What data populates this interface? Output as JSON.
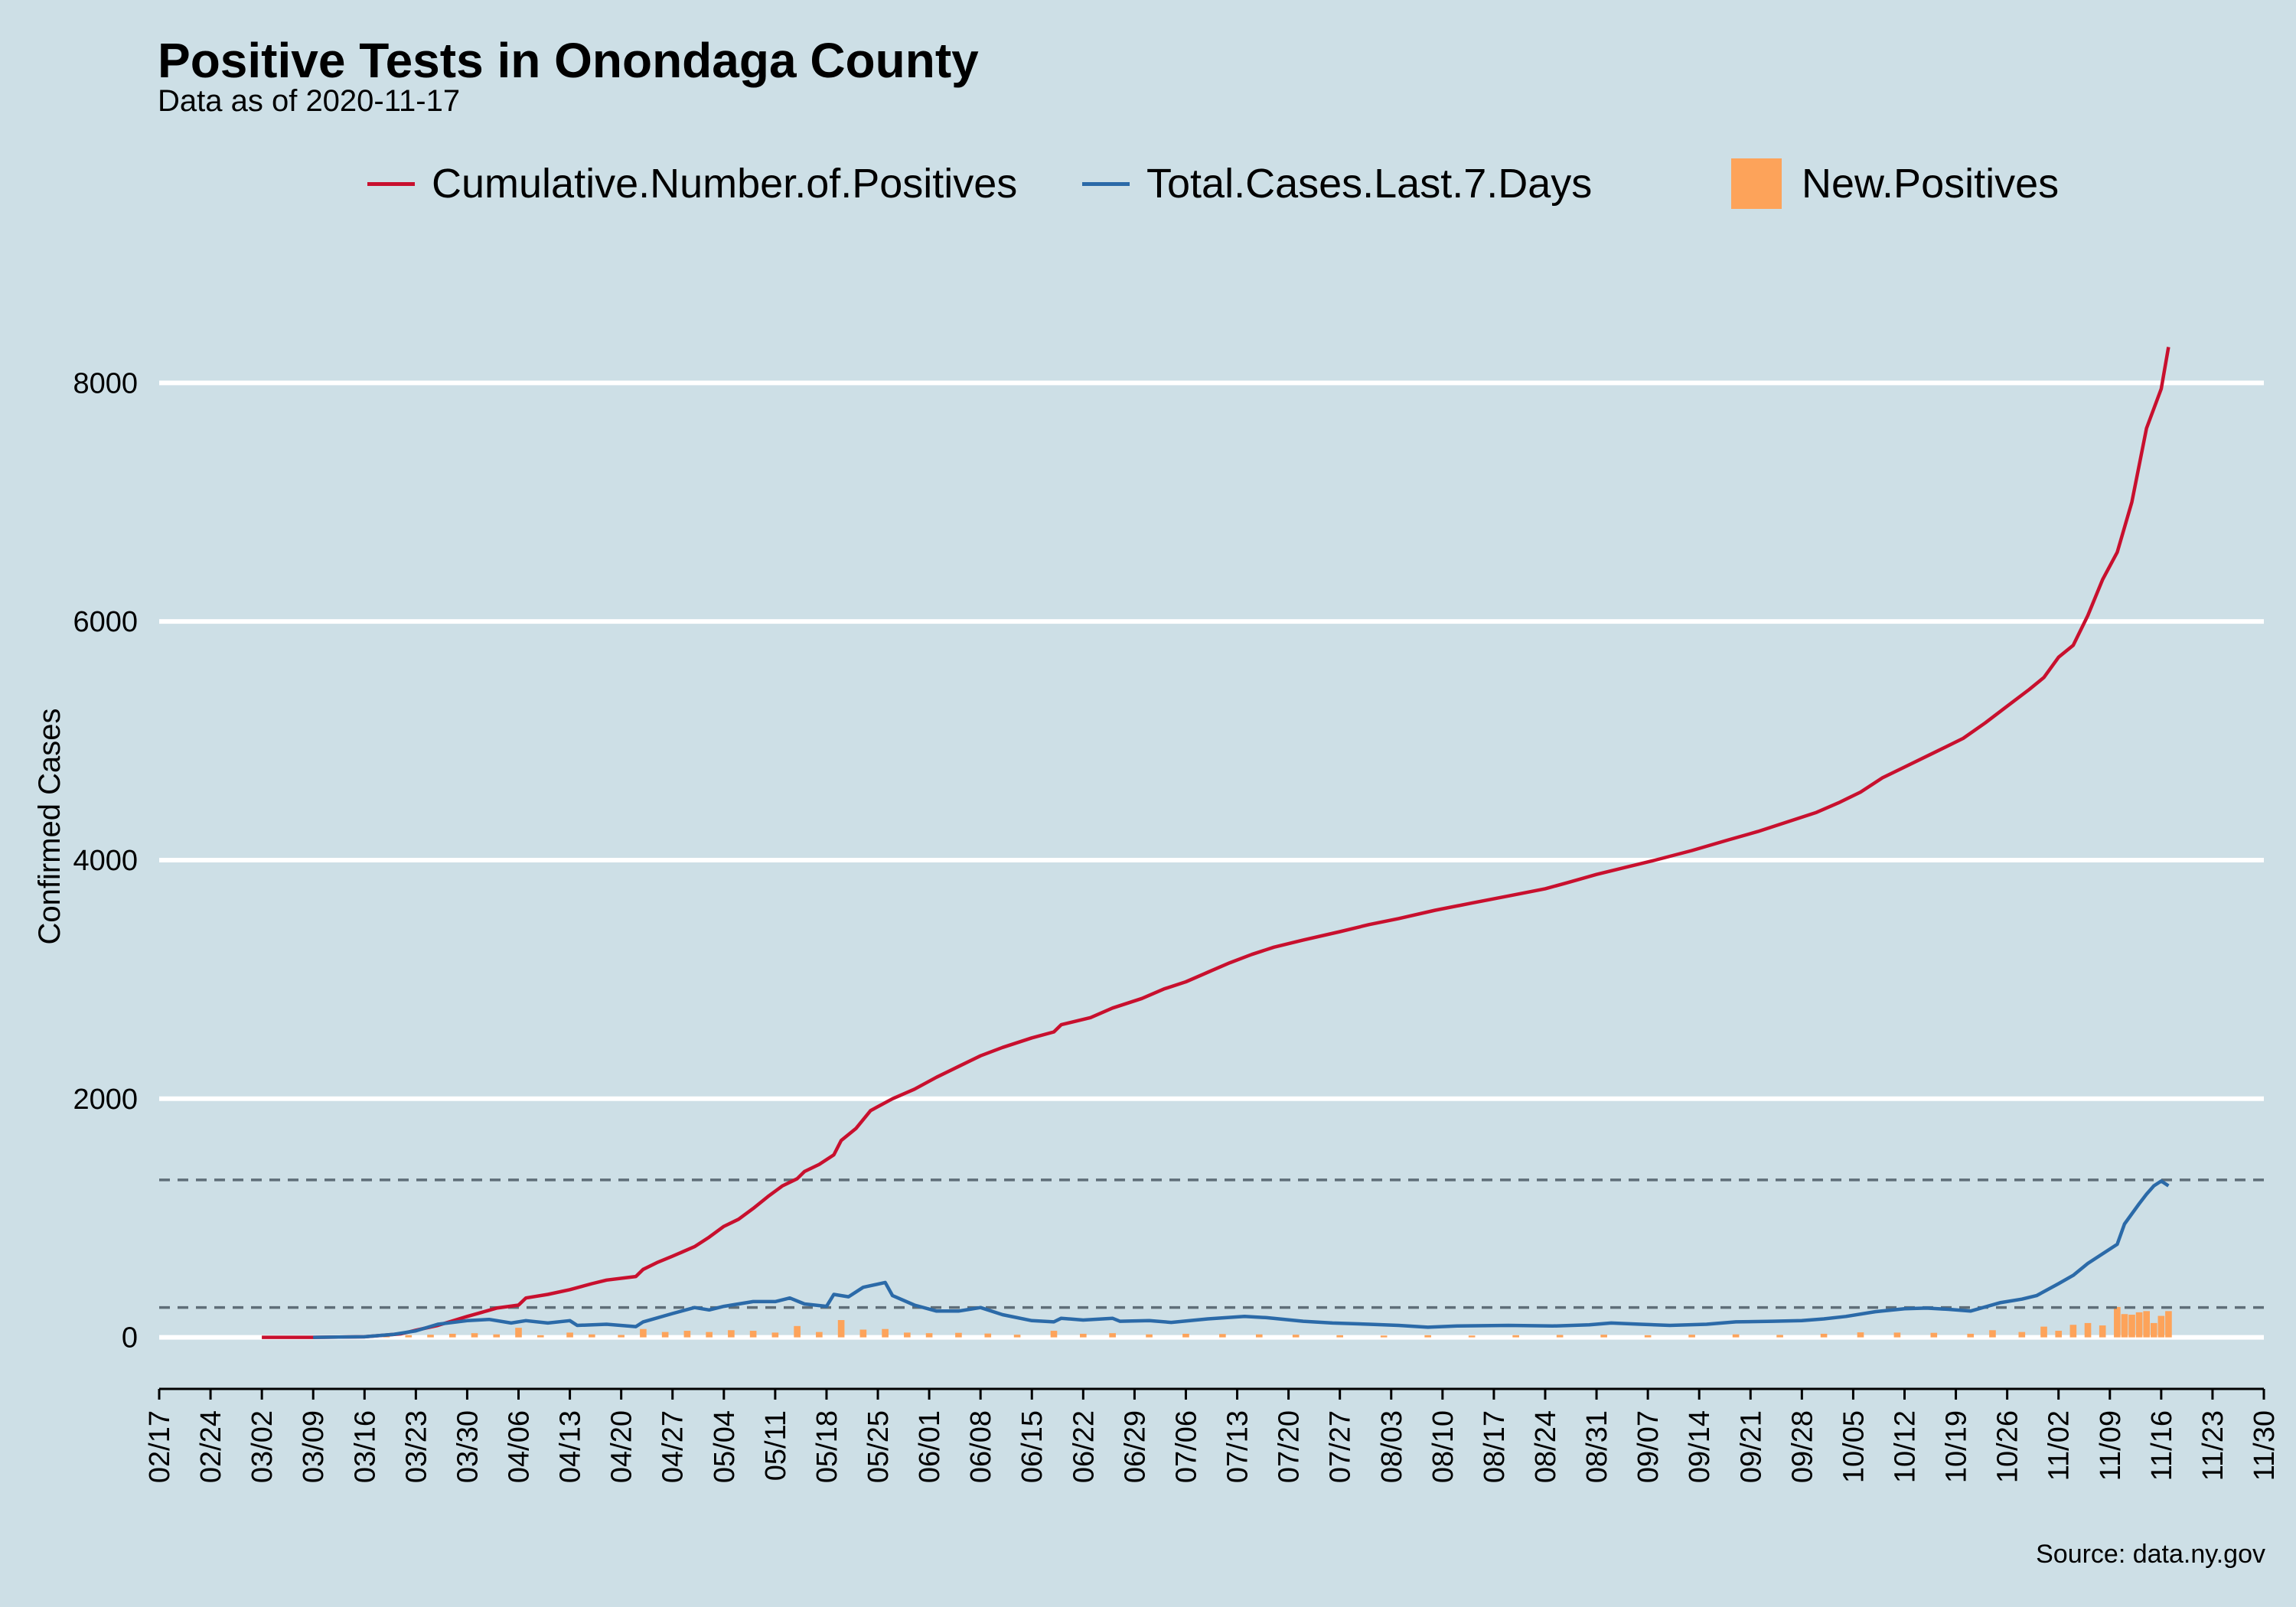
{
  "chart_data": {
    "type": "line",
    "title": "Positive Tests in Onondaga County",
    "subtitle": "Data as of 2020-11-17",
    "ylabel": "Confirmed Cases",
    "xlabel": "",
    "source": "Source: data.ny.gov",
    "x_ticks": [
      "02/17",
      "02/24",
      "03/02",
      "03/09",
      "03/16",
      "03/23",
      "03/30",
      "04/06",
      "04/13",
      "04/20",
      "04/27",
      "05/04",
      "05/11",
      "05/18",
      "05/25",
      "06/01",
      "06/08",
      "06/15",
      "06/22",
      "06/29",
      "07/06",
      "07/13",
      "07/20",
      "07/27",
      "08/03",
      "08/10",
      "08/17",
      "08/24",
      "08/31",
      "09/07",
      "09/14",
      "09/21",
      "09/28",
      "10/05",
      "10/12",
      "10/19",
      "10/26",
      "11/02",
      "11/09",
      "11/16",
      "11/23",
      "11/30"
    ],
    "y_ticks": [
      0,
      2000,
      4000,
      6000,
      8000
    ],
    "xlim": [
      "2020-02-17",
      "2020-11-30"
    ],
    "ylim": [
      -400,
      8900
    ],
    "grid": "horizontal",
    "legend_position": "top",
    "reference_lines": [
      250,
      1320
    ],
    "colors": {
      "background": "#cddfe6",
      "cumulative": "#c8102e",
      "weekly": "#2b6aa8",
      "new": "#fda35a",
      "grid": "#ffffff",
      "reference": "#5f6e78"
    },
    "series": [
      {
        "name": "Cumulative.Number.of.Positives",
        "kind": "line",
        "points": [
          [
            "2020-03-02",
            0
          ],
          [
            "2020-03-09",
            0
          ],
          [
            "2020-03-16",
            5
          ],
          [
            "2020-03-21",
            30
          ],
          [
            "2020-03-23",
            60
          ],
          [
            "2020-03-26",
            100
          ],
          [
            "2020-03-30",
            175
          ],
          [
            "2020-04-01",
            210
          ],
          [
            "2020-04-03",
            245
          ],
          [
            "2020-04-06",
            270
          ],
          [
            "2020-04-07",
            330
          ],
          [
            "2020-04-10",
            360
          ],
          [
            "2020-04-13",
            400
          ],
          [
            "2020-04-16",
            450
          ],
          [
            "2020-04-18",
            480
          ],
          [
            "2020-04-22",
            510
          ],
          [
            "2020-04-23",
            570
          ],
          [
            "2020-04-25",
            630
          ],
          [
            "2020-04-27",
            680
          ],
          [
            "2020-04-30",
            760
          ],
          [
            "2020-05-02",
            840
          ],
          [
            "2020-05-04",
            930
          ],
          [
            "2020-05-06",
            990
          ],
          [
            "2020-05-08",
            1080
          ],
          [
            "2020-05-10",
            1180
          ],
          [
            "2020-05-12",
            1270
          ],
          [
            "2020-05-14",
            1330
          ],
          [
            "2020-05-15",
            1390
          ],
          [
            "2020-05-17",
            1450
          ],
          [
            "2020-05-19",
            1530
          ],
          [
            "2020-05-20",
            1650
          ],
          [
            "2020-05-22",
            1750
          ],
          [
            "2020-05-24",
            1900
          ],
          [
            "2020-05-27",
            2000
          ],
          [
            "2020-05-30",
            2080
          ],
          [
            "2020-06-02",
            2180
          ],
          [
            "2020-06-05",
            2270
          ],
          [
            "2020-06-08",
            2360
          ],
          [
            "2020-06-11",
            2430
          ],
          [
            "2020-06-15",
            2510
          ],
          [
            "2020-06-18",
            2560
          ],
          [
            "2020-06-19",
            2620
          ],
          [
            "2020-06-23",
            2680
          ],
          [
            "2020-06-26",
            2760
          ],
          [
            "2020-06-30",
            2840
          ],
          [
            "2020-07-03",
            2920
          ],
          [
            "2020-07-06",
            2980
          ],
          [
            "2020-07-09",
            3060
          ],
          [
            "2020-07-12",
            3140
          ],
          [
            "2020-07-15",
            3210
          ],
          [
            "2020-07-18",
            3270
          ],
          [
            "2020-07-22",
            3330
          ],
          [
            "2020-07-27",
            3400
          ],
          [
            "2020-07-31",
            3460
          ],
          [
            "2020-08-04",
            3510
          ],
          [
            "2020-08-09",
            3580
          ],
          [
            "2020-08-14",
            3640
          ],
          [
            "2020-08-19",
            3700
          ],
          [
            "2020-08-24",
            3760
          ],
          [
            "2020-08-27",
            3810
          ],
          [
            "2020-08-31",
            3880
          ],
          [
            "2020-09-04",
            3940
          ],
          [
            "2020-09-08",
            4000
          ],
          [
            "2020-09-13",
            4080
          ],
          [
            "2020-09-18",
            4170
          ],
          [
            "2020-09-22",
            4240
          ],
          [
            "2020-09-26",
            4320
          ],
          [
            "2020-09-30",
            4400
          ],
          [
            "2020-10-03",
            4480
          ],
          [
            "2020-10-06",
            4570
          ],
          [
            "2020-10-09",
            4690
          ],
          [
            "2020-10-12",
            4780
          ],
          [
            "2020-10-16",
            4900
          ],
          [
            "2020-10-20",
            5020
          ],
          [
            "2020-10-23",
            5150
          ],
          [
            "2020-10-26",
            5290
          ],
          [
            "2020-10-29",
            5430
          ],
          [
            "2020-10-31",
            5530
          ],
          [
            "2020-11-02",
            5700
          ],
          [
            "2020-11-04",
            5800
          ],
          [
            "2020-11-06",
            6050
          ],
          [
            "2020-11-08",
            6350
          ],
          [
            "2020-11-10",
            6580
          ],
          [
            "2020-11-12",
            7000
          ],
          [
            "2020-11-14",
            7620
          ],
          [
            "2020-11-16",
            7950
          ],
          [
            "2020-11-17",
            8300
          ]
        ]
      },
      {
        "name": "Total.Cases.Last.7.Days",
        "kind": "line",
        "points": [
          [
            "2020-03-09",
            0
          ],
          [
            "2020-03-16",
            5
          ],
          [
            "2020-03-20",
            25
          ],
          [
            "2020-03-23",
            55
          ],
          [
            "2020-03-26",
            110
          ],
          [
            "2020-03-30",
            140
          ],
          [
            "2020-04-02",
            150
          ],
          [
            "2020-04-05",
            120
          ],
          [
            "2020-04-07",
            140
          ],
          [
            "2020-04-10",
            120
          ],
          [
            "2020-04-13",
            140
          ],
          [
            "2020-04-14",
            100
          ],
          [
            "2020-04-18",
            110
          ],
          [
            "2020-04-22",
            90
          ],
          [
            "2020-04-23",
            130
          ],
          [
            "2020-04-27",
            200
          ],
          [
            "2020-04-30",
            250
          ],
          [
            "2020-05-02",
            230
          ],
          [
            "2020-05-04",
            260
          ],
          [
            "2020-05-08",
            300
          ],
          [
            "2020-05-11",
            300
          ],
          [
            "2020-05-13",
            330
          ],
          [
            "2020-05-15",
            280
          ],
          [
            "2020-05-18",
            260
          ],
          [
            "2020-05-19",
            360
          ],
          [
            "2020-05-21",
            340
          ],
          [
            "2020-05-23",
            420
          ],
          [
            "2020-05-26",
            460
          ],
          [
            "2020-05-27",
            350
          ],
          [
            "2020-05-30",
            270
          ],
          [
            "2020-06-02",
            220
          ],
          [
            "2020-06-05",
            220
          ],
          [
            "2020-06-08",
            250
          ],
          [
            "2020-06-11",
            190
          ],
          [
            "2020-06-15",
            140
          ],
          [
            "2020-06-18",
            130
          ],
          [
            "2020-06-19",
            160
          ],
          [
            "2020-06-22",
            145
          ],
          [
            "2020-06-26",
            160
          ],
          [
            "2020-06-27",
            135
          ],
          [
            "2020-07-01",
            140
          ],
          [
            "2020-07-04",
            125
          ],
          [
            "2020-07-09",
            155
          ],
          [
            "2020-07-14",
            175
          ],
          [
            "2020-07-17",
            165
          ],
          [
            "2020-07-22",
            135
          ],
          [
            "2020-07-26",
            120
          ],
          [
            "2020-07-31",
            110
          ],
          [
            "2020-08-04",
            100
          ],
          [
            "2020-08-08",
            85
          ],
          [
            "2020-08-12",
            95
          ],
          [
            "2020-08-19",
            100
          ],
          [
            "2020-08-25",
            95
          ],
          [
            "2020-08-30",
            105
          ],
          [
            "2020-09-02",
            120
          ],
          [
            "2020-09-06",
            110
          ],
          [
            "2020-09-10",
            100
          ],
          [
            "2020-09-15",
            110
          ],
          [
            "2020-09-19",
            130
          ],
          [
            "2020-09-24",
            135
          ],
          [
            "2020-09-28",
            140
          ],
          [
            "2020-10-01",
            155
          ],
          [
            "2020-10-04",
            175
          ],
          [
            "2020-10-08",
            215
          ],
          [
            "2020-10-12",
            240
          ],
          [
            "2020-10-15",
            245
          ],
          [
            "2020-10-18",
            235
          ],
          [
            "2020-10-21",
            220
          ],
          [
            "2020-10-25",
            290
          ],
          [
            "2020-10-28",
            320
          ],
          [
            "2020-10-30",
            350
          ],
          [
            "2020-11-02",
            450
          ],
          [
            "2020-11-04",
            520
          ],
          [
            "2020-11-06",
            620
          ],
          [
            "2020-11-08",
            700
          ],
          [
            "2020-11-10",
            780
          ],
          [
            "2020-11-11",
            950
          ],
          [
            "2020-11-13",
            1120
          ],
          [
            "2020-11-14",
            1200
          ],
          [
            "2020-11-15",
            1270
          ],
          [
            "2020-11-16",
            1310
          ],
          [
            "2020-11-17",
            1270
          ]
        ]
      },
      {
        "name": "New.Positives",
        "kind": "bar",
        "points": [
          [
            "2020-03-16",
            5
          ],
          [
            "2020-03-19",
            12
          ],
          [
            "2020-03-22",
            18
          ],
          [
            "2020-03-25",
            22
          ],
          [
            "2020-03-28",
            30
          ],
          [
            "2020-03-31",
            35
          ],
          [
            "2020-04-03",
            25
          ],
          [
            "2020-04-06",
            80
          ],
          [
            "2020-04-09",
            18
          ],
          [
            "2020-04-13",
            40
          ],
          [
            "2020-04-16",
            25
          ],
          [
            "2020-04-20",
            20
          ],
          [
            "2020-04-23",
            70
          ],
          [
            "2020-04-26",
            45
          ],
          [
            "2020-04-29",
            55
          ],
          [
            "2020-05-02",
            45
          ],
          [
            "2020-05-05",
            60
          ],
          [
            "2020-05-08",
            55
          ],
          [
            "2020-05-11",
            40
          ],
          [
            "2020-05-14",
            95
          ],
          [
            "2020-05-17",
            45
          ],
          [
            "2020-05-20",
            145
          ],
          [
            "2020-05-23",
            65
          ],
          [
            "2020-05-26",
            70
          ],
          [
            "2020-05-29",
            40
          ],
          [
            "2020-06-01",
            35
          ],
          [
            "2020-06-05",
            38
          ],
          [
            "2020-06-09",
            32
          ],
          [
            "2020-06-13",
            22
          ],
          [
            "2020-06-18",
            55
          ],
          [
            "2020-06-22",
            30
          ],
          [
            "2020-06-26",
            35
          ],
          [
            "2020-07-01",
            25
          ],
          [
            "2020-07-06",
            30
          ],
          [
            "2020-07-11",
            28
          ],
          [
            "2020-07-16",
            25
          ],
          [
            "2020-07-21",
            22
          ],
          [
            "2020-07-27",
            18
          ],
          [
            "2020-08-02",
            15
          ],
          [
            "2020-08-08",
            18
          ],
          [
            "2020-08-14",
            15
          ],
          [
            "2020-08-20",
            18
          ],
          [
            "2020-08-26",
            20
          ],
          [
            "2020-09-01",
            22
          ],
          [
            "2020-09-07",
            18
          ],
          [
            "2020-09-13",
            22
          ],
          [
            "2020-09-19",
            25
          ],
          [
            "2020-09-25",
            20
          ],
          [
            "2020-10-01",
            30
          ],
          [
            "2020-10-06",
            42
          ],
          [
            "2020-10-11",
            40
          ],
          [
            "2020-10-16",
            38
          ],
          [
            "2020-10-21",
            30
          ],
          [
            "2020-10-24",
            60
          ],
          [
            "2020-10-28",
            45
          ],
          [
            "2020-10-31",
            90
          ],
          [
            "2020-11-02",
            55
          ],
          [
            "2020-11-04",
            105
          ],
          [
            "2020-11-06",
            120
          ],
          [
            "2020-11-08",
            100
          ],
          [
            "2020-11-10",
            255
          ],
          [
            "2020-11-11",
            195
          ],
          [
            "2020-11-12",
            190
          ],
          [
            "2020-11-13",
            210
          ],
          [
            "2020-11-14",
            220
          ],
          [
            "2020-11-15",
            120
          ],
          [
            "2020-11-16",
            180
          ],
          [
            "2020-11-17",
            220
          ]
        ]
      }
    ]
  }
}
